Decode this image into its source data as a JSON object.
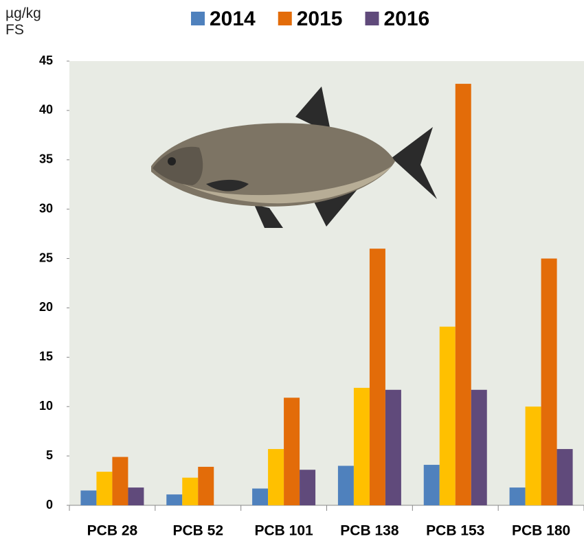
{
  "chart_data": {
    "type": "bar",
    "y_label": "µg/kg FS",
    "categories": [
      "PCB 28",
      "PCB 52",
      "PCB 101",
      "PCB 138",
      "PCB 153",
      "PCB 180"
    ],
    "series": [
      {
        "name": "2014",
        "color": "#4f81bd",
        "values": [
          1.5,
          1.1,
          1.7,
          4.0,
          4.1,
          1.8
        ]
      },
      {
        "color": "#ffc000",
        "values": [
          3.4,
          2.8,
          5.7,
          11.9,
          18.1,
          10.0
        ]
      },
      {
        "name": "2015",
        "color": "#e36c09",
        "values": [
          4.9,
          3.9,
          10.9,
          26.0,
          42.7,
          25.0
        ]
      },
      {
        "name": "2016",
        "color": "#604a7b",
        "values": [
          1.8,
          null,
          3.6,
          11.7,
          11.7,
          5.7
        ]
      }
    ],
    "ylim": [
      0,
      45
    ],
    "yticks": [
      0,
      5,
      10,
      15,
      20,
      25,
      30,
      35,
      40,
      45
    ],
    "legend": "top"
  }
}
